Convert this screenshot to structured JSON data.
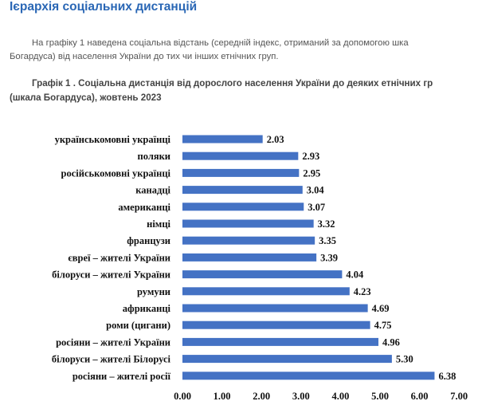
{
  "page": {
    "heading": "Ієрархія соціальних дистанцій",
    "intro_line1": "На графіку 1 наведена соціальна відстань (середній індекс, отриманий за допомогою шка",
    "intro_line2": "Богардуса) від населення України до тих чи інших етнічних груп.",
    "caption_line1": "Графік 1 . Соціальна дистанція від дорослого населення України до деяких етнічних гр",
    "caption_line2": "(шкала Богардуса), жовтень 2023"
  },
  "chart_data": {
    "type": "bar",
    "orientation": "horizontal",
    "categories": [
      "українськомовні українці",
      "поляки",
      "російськомовні українці",
      "канадці",
      "американці",
      "німці",
      "французи",
      "євреї – жителі України",
      "білоруси – жителі України",
      "румуни",
      "африканці",
      "роми (цигани)",
      "росіяни – жителі України",
      "білоруси – жителі Білорусі",
      "росіяни – жителі росії"
    ],
    "values": [
      2.03,
      2.93,
      2.95,
      3.04,
      3.07,
      3.32,
      3.35,
      3.39,
      4.04,
      4.23,
      4.69,
      4.75,
      4.96,
      5.3,
      6.38
    ],
    "value_labels": [
      "2.03",
      "2.93",
      "2.95",
      "3.04",
      "3.07",
      "3.32",
      "3.35",
      "3.39",
      "4.04",
      "4.23",
      "4.69",
      "4.75",
      "4.96",
      "5.30",
      "6.38"
    ],
    "xlim": [
      0,
      7
    ],
    "ticks": [
      "0.00",
      "1.00",
      "2.00",
      "3.00",
      "4.00",
      "5.00",
      "6.00",
      "7.00"
    ],
    "grid": false,
    "bar_color": "#4472c4"
  }
}
